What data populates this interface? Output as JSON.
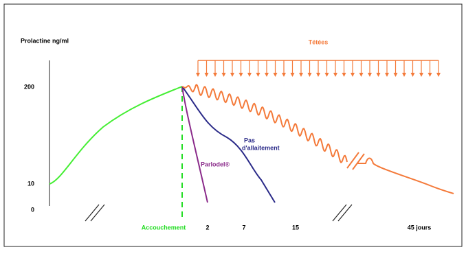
{
  "header": {
    "y_axis_label": "Prolactine ng/ml",
    "feeding_label": "Tétées"
  },
  "y_ticks": [
    "200",
    "10",
    "0"
  ],
  "x_labels": [
    "Accouchement",
    "2",
    "7",
    "15",
    "45 jours"
  ],
  "curves": {
    "no_breastfeeding": [
      "Pas",
      "d'allaitement"
    ],
    "parlodel": "Parlodel®"
  }
}
